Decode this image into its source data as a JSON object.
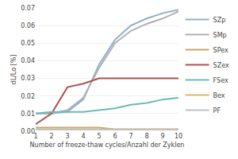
{
  "chart_data": {
    "type": "line",
    "x": [
      1,
      2,
      3,
      4,
      5,
      6,
      7,
      8,
      9,
      10
    ],
    "series": [
      {
        "name": "SZp",
        "color": "#8fb0cc",
        "values": [
          0.01,
          0.01,
          0.011,
          0.018,
          0.038,
          0.052,
          0.06,
          0.064,
          0.067,
          0.069
        ]
      },
      {
        "name": "SMp",
        "color": "#b0b0b0",
        "values": [
          0.01,
          0.01,
          0.012,
          0.019,
          0.036,
          0.05,
          0.057,
          0.061,
          0.064,
          0.068
        ]
      },
      {
        "name": "SPex",
        "color": "#c8a86b",
        "values": [
          0.002,
          0.002,
          0.002,
          0.002,
          0.002,
          0.001,
          0.001,
          0.001,
          0.001,
          0.001
        ]
      },
      {
        "name": "SZex",
        "color": "#b05050",
        "values": [
          0.004,
          0.01,
          0.025,
          0.027,
          0.03,
          0.03,
          0.03,
          0.03,
          0.03,
          0.03
        ]
      },
      {
        "name": "FSex",
        "color": "#6abcb4",
        "values": [
          0.01,
          0.011,
          0.011,
          0.011,
          0.012,
          0.013,
          0.015,
          0.016,
          0.018,
          0.019
        ]
      },
      {
        "name": "Bex",
        "color": "#d4b86a",
        "values": [
          0.001,
          0.001,
          0.001,
          0.001,
          0.001,
          0.001,
          0.001,
          0.001,
          0.001,
          0.001
        ]
      },
      {
        "name": "PF",
        "color": "#c0c0c0",
        "values": [
          0.001,
          0.001,
          0.001,
          0.001,
          0.001,
          0.001,
          0.001,
          0.001,
          0.001,
          0.001
        ]
      }
    ],
    "xlabel": "Number of freeze-thaw cycles/Anzahl der Zyklen",
    "ylabel": "dL/Lo [%]",
    "xlim": [
      1,
      10
    ],
    "xticks": [
      1,
      2,
      3,
      4,
      5,
      6,
      7,
      8,
      9,
      10
    ],
    "ylim": [
      0,
      0.07
    ],
    "yticks": [
      {
        "value": 0,
        "label": "0.00"
      },
      0.01,
      0.02,
      0.03,
      0.04,
      0.05,
      0.06,
      0.07
    ],
    "grid": "y",
    "legend": "right"
  }
}
